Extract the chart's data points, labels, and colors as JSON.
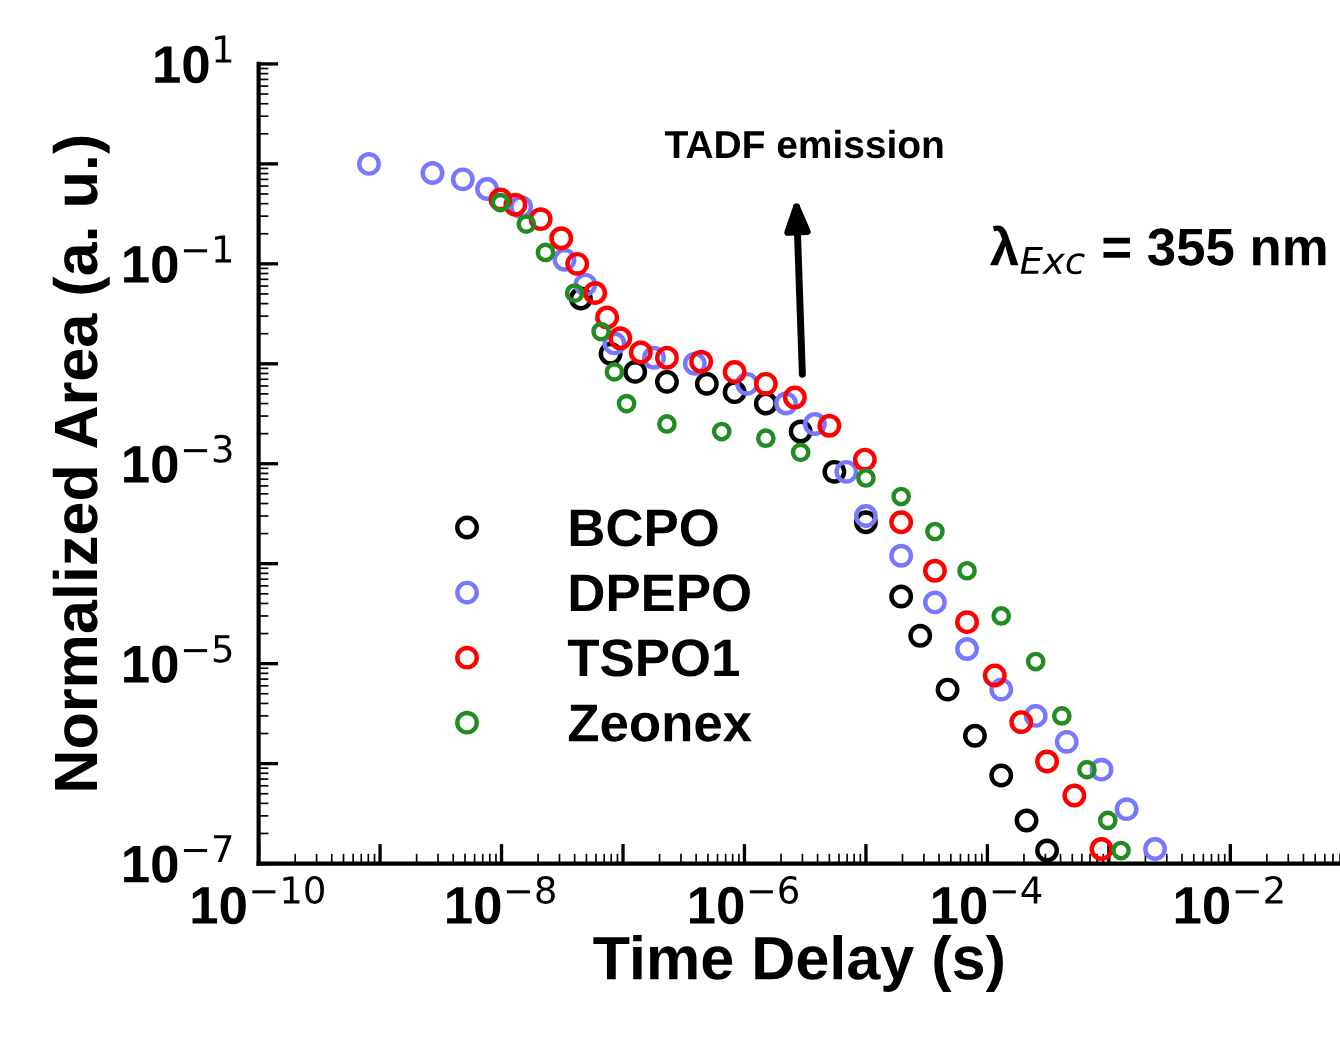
{
  "chart_data": {
    "type": "scatter",
    "xlabel": "Time Delay (s)",
    "ylabel": "Normalized Area (a. u.)",
    "log": "xy",
    "marker": "circle",
    "legend": "bottom left",
    "grid": false,
    "xlim": [
      1e-10,
      0.08
    ],
    "ylim": [
      1e-07,
      10
    ],
    "xticks": [
      {
        "value": 1e-10,
        "label": "10$^{−10}$"
      },
      {
        "value": 1e-09,
        "label": null
      },
      {
        "value": 1e-08,
        "label": "10$^{−8}$"
      },
      {
        "value": 1e-07,
        "label": null
      },
      {
        "value": 1e-06,
        "label": "10$^{−6}$"
      },
      {
        "value": 1e-05,
        "label": null
      },
      {
        "value": 0.0001,
        "label": "10$^{−4}$"
      },
      {
        "value": 0.001,
        "label": null
      },
      {
        "value": 0.01,
        "label": "10$^{−2}$"
      }
    ],
    "yticks": [
      {
        "value": 10,
        "label": "10$^{1}$"
      },
      {
        "value": 1,
        "label": null
      },
      {
        "value": 0.1,
        "label": "10$^{−1}$"
      },
      {
        "value": 0.01,
        "label": null
      },
      {
        "value": 0.001,
        "label": "10$^{−3}$"
      },
      {
        "value": 0.0001,
        "label": null
      },
      {
        "value": 1e-05,
        "label": "10$^{−5}$"
      },
      {
        "value": 1e-06,
        "label": null
      },
      {
        "value": 1e-07,
        "label": "10$^{−7}$"
      }
    ],
    "annotations": [
      "TADF emission",
      "λ$_{Exc}$ = 355 nm"
    ],
    "series": [
      {
        "name": "BCPO",
        "color": "#000000",
        "x": [
          4.5e-08,
          7.9e-08,
          1.26e-07,
          2.3e-07,
          4.9e-07,
          8.3e-07,
          1.5e-06,
          2.9e-06,
          5.5e-06,
          1e-05,
          1.95e-05,
          2.8e-05,
          4.7e-05,
          7.9e-05,
          0.00013,
          0.00021,
          0.00031
        ],
        "values": [
          0.045,
          0.0126,
          0.0083,
          0.0066,
          0.0063,
          0.0052,
          0.004,
          0.0021,
          0.00083,
          0.00026,
          4.7e-05,
          1.9e-05,
          5.5e-06,
          1.9e-06,
          7.6e-07,
          2.7e-07,
          1.35e-07
        ]
      },
      {
        "name": "DPEPO",
        "color": "#7777ff",
        "x": [
          8.1e-10,
          2.7e-09,
          4.8e-09,
          7.6e-09,
          1.45e-08,
          3.3e-08,
          4.9e-08,
          8.5e-08,
          1.8e-07,
          3.9e-07,
          1.05e-06,
          2.2e-06,
          3.8e-06,
          6.9e-06,
          1e-05,
          1.95e-05,
          3.7e-05,
          6.8e-05,
          0.00013,
          0.00025,
          0.00045,
          0.00087,
          0.0014,
          0.0024
        ],
        "values": [
          1.0,
          0.81,
          0.7,
          0.56,
          0.37,
          0.11,
          0.062,
          0.016,
          0.0115,
          0.01,
          0.0063,
          0.004,
          0.0025,
          0.00083,
          0.0003,
          0.00012,
          4.1e-05,
          1.4e-05,
          5.5e-06,
          3e-06,
          1.65e-06,
          8.7e-07,
          3.5e-07,
          1.4e-07
        ]
      },
      {
        "name": "TSPO1",
        "color": "#ff0000",
        "x": [
          9.8e-09,
          1.3e-08,
          2.1e-08,
          3.1e-08,
          4.2e-08,
          5.9e-08,
          7.4e-08,
          9.5e-08,
          1.4e-07,
          2.3e-07,
          4.4e-07,
          8.3e-07,
          1.5e-06,
          2.6e-06,
          5e-06,
          9.8e-06,
          1.95e-05,
          3.7e-05,
          6.8e-05,
          0.000115,
          0.00019,
          0.00031,
          0.00052,
          0.00087
        ],
        "values": [
          0.44,
          0.39,
          0.28,
          0.18,
          0.1,
          0.051,
          0.029,
          0.018,
          0.013,
          0.0115,
          0.0105,
          0.0083,
          0.0063,
          0.0046,
          0.0024,
          0.0011,
          0.00026,
          8.5e-05,
          2.6e-05,
          7.6e-06,
          2.6e-06,
          1.05e-06,
          4.8e-07,
          1.4e-07
        ]
      },
      {
        "name": "Zeonex",
        "color": "#228b22",
        "x": [
          9.8e-09,
          1.6e-08,
          2.3e-08,
          4e-08,
          6.6e-08,
          8.5e-08,
          1.07e-07,
          2.3e-07,
          6.5e-07,
          1.5e-06,
          2.9e-06,
          1e-05,
          1.95e-05,
          3.7e-05,
          6.8e-05,
          0.00013,
          0.00025,
          0.00041,
          0.00066,
          0.00098,
          0.00126
        ],
        "values": [
          0.41,
          0.25,
          0.13,
          0.051,
          0.021,
          0.0083,
          0.004,
          0.0025,
          0.0021,
          0.0018,
          0.0013,
          0.00072,
          0.00047,
          0.00021,
          8.5e-05,
          3e-05,
          1.05e-05,
          3e-06,
          8.7e-07,
          2.7e-07,
          1.35e-07
        ]
      }
    ]
  }
}
